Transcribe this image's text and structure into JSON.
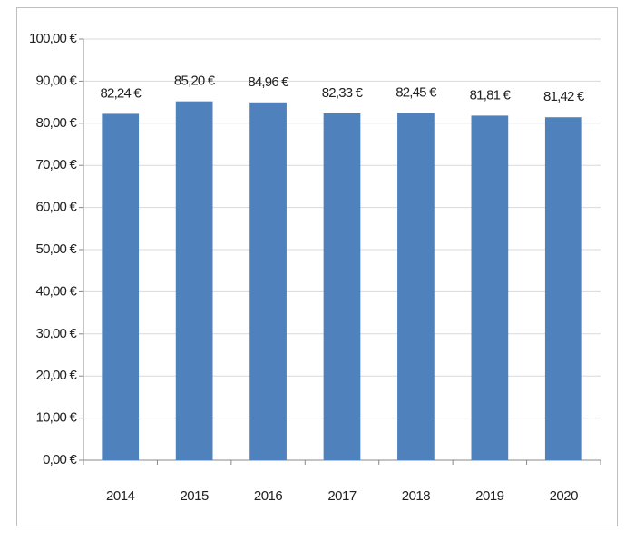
{
  "chart_data": {
    "type": "bar",
    "categories": [
      "2014",
      "2015",
      "2016",
      "2017",
      "2018",
      "2019",
      "2020"
    ],
    "values": [
      82.24,
      85.2,
      84.96,
      82.33,
      82.45,
      81.81,
      81.42
    ],
    "value_labels": [
      "82,24 €",
      "85,20 €",
      "84,96 €",
      "82,33 €",
      "82,45 €",
      "81,81 €",
      "81,42 €"
    ],
    "color": "#4f81bd",
    "ylim": [
      0,
      100
    ],
    "yticks": [
      {
        "value": 0,
        "label": "0,00 €"
      },
      {
        "value": 10,
        "label": "10,00 €"
      },
      {
        "value": 20,
        "label": "20,00 €"
      },
      {
        "value": 30,
        "label": "30,00 €"
      },
      {
        "value": 40,
        "label": "40,00 €"
      },
      {
        "value": 50,
        "label": "50,00 €"
      },
      {
        "value": 60,
        "label": "60,00 €"
      },
      {
        "value": 70,
        "label": "70,00 €"
      },
      {
        "value": 80,
        "label": "80,00 €"
      },
      {
        "value": 90,
        "label": "90,00 €"
      },
      {
        "value": 100,
        "label": "100,00 €"
      }
    ],
    "grid": true
  }
}
